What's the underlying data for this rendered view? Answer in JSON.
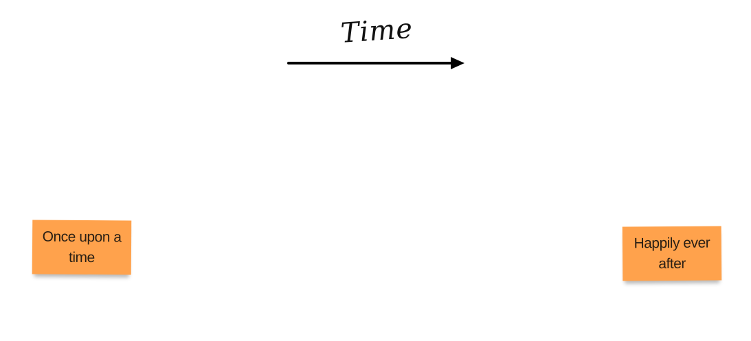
{
  "timeline": {
    "label": "Time",
    "arrow_color": "#000000"
  },
  "notes": [
    {
      "text": "Once upon a time",
      "color": "#ffa24c"
    },
    {
      "text": "Happily ever after",
      "color": "#ffa24c"
    }
  ]
}
